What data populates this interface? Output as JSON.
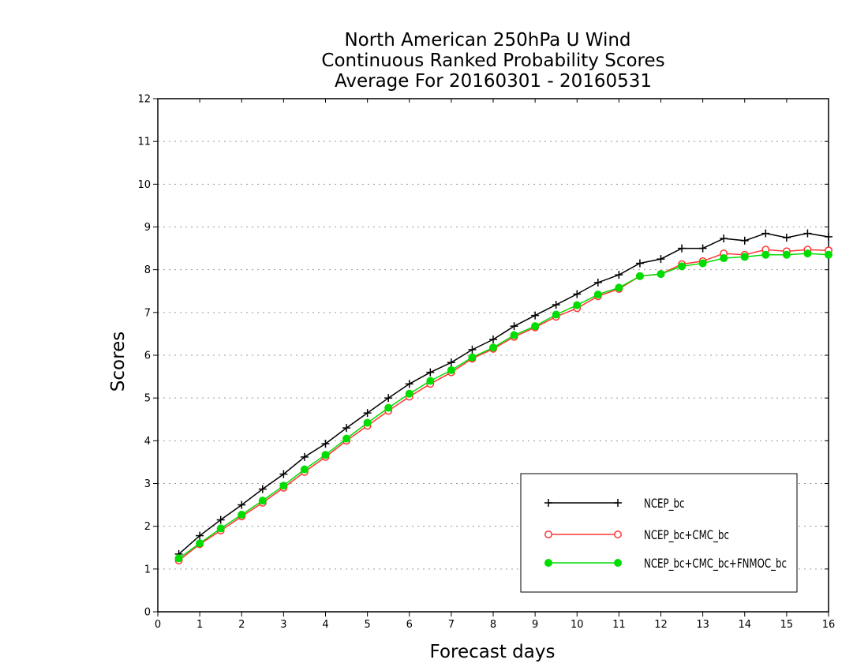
{
  "chart_data": {
    "type": "line",
    "title": [
      "North American 250hPa U Wind",
      "Continuous Ranked Probability Scores",
      "Average For 20160301 - 20160531"
    ],
    "xlabel": "Forecast days",
    "ylabel": "Scores",
    "xlim": [
      0,
      16
    ],
    "ylim": [
      0,
      12
    ],
    "xticks": [
      0,
      1,
      2,
      3,
      4,
      5,
      6,
      7,
      8,
      9,
      10,
      11,
      12,
      13,
      14,
      15,
      16
    ],
    "yticks": [
      0,
      1,
      2,
      3,
      4,
      5,
      6,
      7,
      8,
      9,
      10,
      11,
      12
    ],
    "grid": true,
    "legend_position": "bottom-right",
    "x": [
      0.5,
      1,
      1.5,
      2,
      2.5,
      3,
      3.5,
      4,
      4.5,
      5,
      5.5,
      6,
      6.5,
      7,
      7.5,
      8,
      8.5,
      9,
      9.5,
      10,
      10.5,
      11,
      11.5,
      12,
      12.5,
      13,
      13.5,
      14,
      14.5,
      15,
      15.5,
      16
    ],
    "series": [
      {
        "name": "NCEP_bc",
        "color": "#000000",
        "marker": "plus",
        "values": [
          1.35,
          1.78,
          2.15,
          2.5,
          2.87,
          3.22,
          3.62,
          3.93,
          4.3,
          4.65,
          5.0,
          5.33,
          5.6,
          5.83,
          6.13,
          6.37,
          6.68,
          6.93,
          7.18,
          7.43,
          7.7,
          7.88,
          8.15,
          8.25,
          8.5,
          8.5,
          8.73,
          8.68,
          8.85,
          8.75,
          8.85,
          8.77
        ]
      },
      {
        "name": "NCEP_bc+CMC_bc",
        "color": "#ff3333",
        "marker": "open-circle",
        "values": [
          1.2,
          1.58,
          1.9,
          2.23,
          2.55,
          2.9,
          3.27,
          3.62,
          4.0,
          4.35,
          4.7,
          5.03,
          5.33,
          5.6,
          5.92,
          6.15,
          6.43,
          6.65,
          6.9,
          7.1,
          7.38,
          7.55,
          7.85,
          7.9,
          8.13,
          8.2,
          8.38,
          8.35,
          8.47,
          8.43,
          8.47,
          8.45
        ]
      },
      {
        "name": "NCEP_bc+CMC_bc+FNMOC_bc",
        "color": "#00dd00",
        "marker": "filled-circle",
        "values": [
          1.25,
          1.6,
          1.95,
          2.27,
          2.6,
          2.95,
          3.33,
          3.67,
          4.05,
          4.42,
          4.77,
          5.1,
          5.4,
          5.65,
          5.95,
          6.18,
          6.47,
          6.68,
          6.95,
          7.17,
          7.42,
          7.58,
          7.85,
          7.9,
          8.08,
          8.15,
          8.27,
          8.3,
          8.35,
          8.35,
          8.38,
          8.35
        ]
      }
    ]
  }
}
